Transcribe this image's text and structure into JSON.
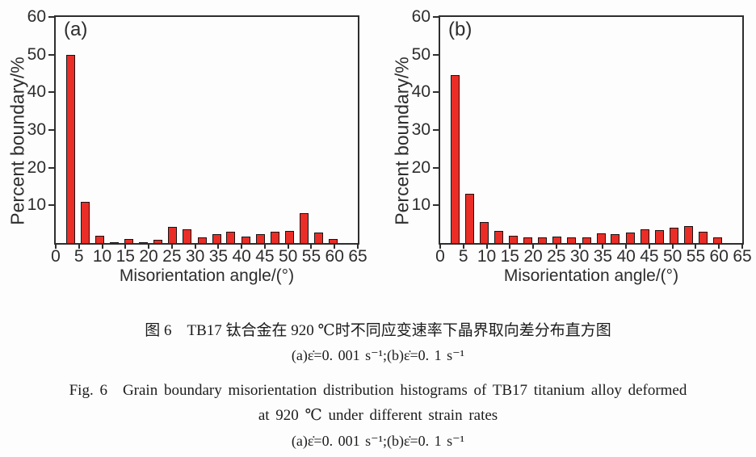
{
  "colors": {
    "bar_fill": "#ea2e27",
    "bar_border": "#151515",
    "axis": "#2e2e2e",
    "background": "#fdfdfd"
  },
  "captions": {
    "zh_line1": "图 6　TB17 钛合金在 920 ℃时不同应变速率下晶界取向差分布直方图",
    "zh_line2": "(a)ε̇=0. 001 s⁻¹;(b)ε̇=0. 1 s⁻¹",
    "en_line1": "Fig. 6　Grain boundary misorientation distribution histograms of TB17 titanium alloy deformed",
    "en_line2": "at 920 ℃ under different strain rates",
    "en_line3": "(a)ε̇=0. 001 s⁻¹;(b)ε̇=0. 1 s⁻¹"
  },
  "chart_data": [
    {
      "type": "bar",
      "panel_label": "(a)",
      "condition": "strain rate 0.001 s⁻¹",
      "xlabel": "Misorientation angle/(°)",
      "ylabel": "Percent boundary/%",
      "xlim": [
        0,
        65
      ],
      "ylim": [
        0,
        60
      ],
      "x_ticks": [
        0,
        5,
        10,
        15,
        20,
        25,
        30,
        35,
        40,
        45,
        50,
        55,
        60,
        65
      ],
      "y_ticks": [
        10,
        20,
        30,
        40,
        50,
        60
      ],
      "grid": "off",
      "legend": "none",
      "bin_width_deg": 3.14,
      "x": [
        3.2,
        6.3,
        9.5,
        12.6,
        15.8,
        18.9,
        22.0,
        25.2,
        28.3,
        31.5,
        34.6,
        37.7,
        40.9,
        44.0,
        47.2,
        50.3,
        53.4,
        56.6,
        59.7
      ],
      "values": [
        50,
        11,
        2,
        0.3,
        1,
        0.3,
        0.8,
        4.2,
        3.6,
        1.6,
        2.4,
        2.9,
        1.8,
        2.3,
        3.0,
        3.2,
        8,
        2.7,
        1
      ]
    },
    {
      "type": "bar",
      "panel_label": "(b)",
      "condition": "strain rate 0.1 s⁻¹",
      "xlabel": "Misorientation angle/(°)",
      "ylabel": "Percent boundary/%",
      "xlim": [
        0,
        65
      ],
      "ylim": [
        0,
        60
      ],
      "x_ticks": [
        0,
        5,
        10,
        15,
        20,
        25,
        30,
        35,
        40,
        45,
        50,
        55,
        60,
        65
      ],
      "y_ticks": [
        10,
        20,
        30,
        40,
        50,
        60
      ],
      "grid": "off",
      "legend": "none",
      "bin_width_deg": 3.14,
      "x": [
        3.2,
        6.3,
        9.5,
        12.6,
        15.8,
        18.9,
        22.0,
        25.2,
        28.3,
        31.5,
        34.6,
        37.7,
        40.9,
        44.0,
        47.2,
        50.3,
        53.4,
        56.6,
        59.7
      ],
      "values": [
        44.5,
        13,
        5.5,
        3.3,
        2,
        1.4,
        1.5,
        1.8,
        1.4,
        1.6,
        2.5,
        2.3,
        2.8,
        3.6,
        3.5,
        4,
        4.4,
        3,
        1.6
      ]
    }
  ]
}
